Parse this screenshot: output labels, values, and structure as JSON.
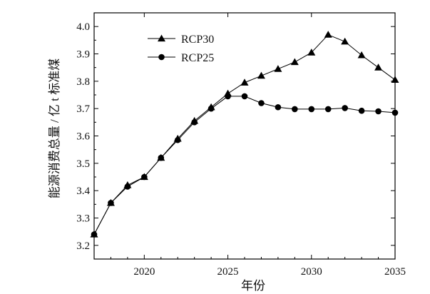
{
  "chart_data": {
    "type": "line",
    "title": "",
    "xlabel": "年份",
    "ylabel": "能源消费总量 / 亿 t 标准煤",
    "xlim": [
      2017,
      2035
    ],
    "ylim": [
      3.15,
      4.05
    ],
    "xticks": [
      2020,
      2025,
      2030,
      2035
    ],
    "xtick_labels": [
      "2020",
      "2025",
      "2030",
      "2035"
    ],
    "yticks": [
      3.2,
      3.3,
      3.4,
      3.5,
      3.6,
      3.7,
      3.8,
      3.9,
      4.0
    ],
    "ytick_labels": [
      "3.2",
      "3.3",
      "3.4",
      "3.5",
      "3.6",
      "3.7",
      "3.8",
      "3.9",
      "4.0"
    ],
    "grid": false,
    "legend_position": "top-left",
    "series": [
      {
        "name": "RCP30",
        "marker": "triangle",
        "color": "#000000",
        "x": [
          2017,
          2018,
          2019,
          2020,
          2021,
          2022,
          2023,
          2024,
          2025,
          2026,
          2027,
          2028,
          2029,
          2030,
          2031,
          2032,
          2033,
          2034,
          2035
        ],
        "values": [
          3.24,
          3.355,
          3.42,
          3.45,
          3.52,
          3.59,
          3.655,
          3.705,
          3.755,
          3.795,
          3.82,
          3.845,
          3.87,
          3.905,
          3.97,
          3.945,
          3.895,
          3.85,
          3.805
        ]
      },
      {
        "name": "RCP25",
        "marker": "circle",
        "color": "#000000",
        "x": [
          2017,
          2018,
          2019,
          2020,
          2021,
          2022,
          2023,
          2024,
          2025,
          2026,
          2027,
          2028,
          2029,
          2030,
          2031,
          2032,
          2033,
          2034,
          2035
        ],
        "values": [
          3.24,
          3.355,
          3.415,
          3.45,
          3.52,
          3.585,
          3.65,
          3.7,
          3.745,
          3.745,
          3.72,
          3.705,
          3.698,
          3.698,
          3.698,
          3.702,
          3.692,
          3.69,
          3.685
        ]
      }
    ]
  }
}
